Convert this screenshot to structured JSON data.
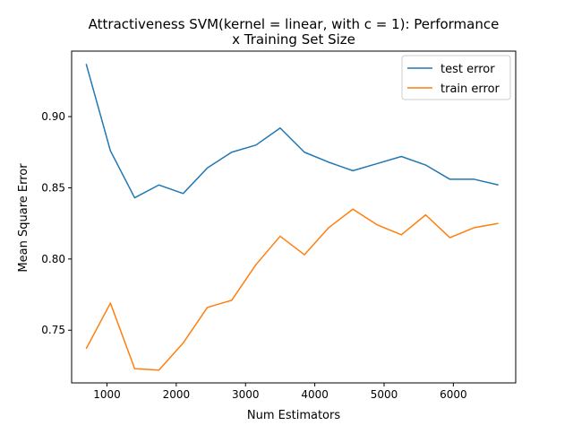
{
  "chart_data": {
    "type": "line",
    "title_line1": "Attractiveness SVM(kernel = linear, with c = 1): Performance",
    "title_line2": "x Training Set Size",
    "xlabel": "Num Estimators",
    "ylabel": "Mean Square Error",
    "xlim": [
      490,
      6900
    ],
    "ylim": [
      0.713,
      0.946
    ],
    "x_ticks": [
      1000,
      2000,
      3000,
      4000,
      5000,
      6000
    ],
    "y_ticks": [
      0.75,
      0.8,
      0.85,
      0.9
    ],
    "x_tick_labels": [
      "1000",
      "2000",
      "3000",
      "4000",
      "5000",
      "6000"
    ],
    "y_tick_labels": [
      "0.75",
      "0.80",
      "0.85",
      "0.90"
    ],
    "grid": false,
    "legend_position": "top-right",
    "x": [
      700,
      1050,
      1400,
      1750,
      2100,
      2450,
      2800,
      3150,
      3500,
      3850,
      4200,
      4550,
      4900,
      5250,
      5600,
      5950,
      6300,
      6650
    ],
    "series": [
      {
        "name": "test error",
        "color": "#1f77b4",
        "values": [
          0.937,
          0.876,
          0.843,
          0.852,
          0.846,
          0.864,
          0.875,
          0.88,
          0.892,
          0.875,
          0.868,
          0.862,
          0.867,
          0.872,
          0.866,
          0.856,
          0.856,
          0.852
        ]
      },
      {
        "name": "train error",
        "color": "#ff7f0e",
        "values": [
          0.737,
          0.769,
          0.723,
          0.722,
          0.741,
          0.766,
          0.771,
          0.796,
          0.816,
          0.803,
          0.822,
          0.835,
          0.824,
          0.817,
          0.831,
          0.815,
          0.822,
          0.825
        ]
      }
    ]
  }
}
